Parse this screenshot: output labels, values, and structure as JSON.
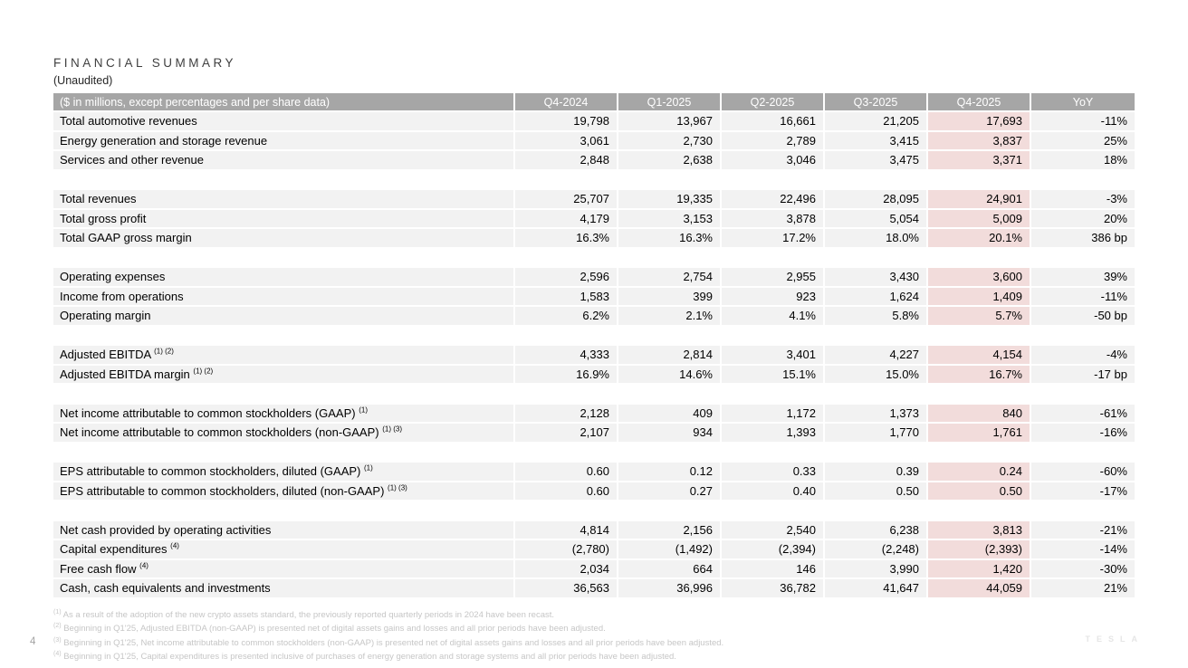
{
  "page": {
    "title": "FINANCIAL SUMMARY",
    "subtitle": "(Unaudited)",
    "page_number": "4",
    "logo": "TESLA"
  },
  "colors": {
    "header_bg": "#a6a6a6",
    "header_text": "#ffffff",
    "row_bg": "#f2f2f2",
    "highlight_bg": "#f2dcdb",
    "footnote_text": "#c6c6c6"
  },
  "table": {
    "header": [
      "($ in millions, except percentages and per share data)",
      "Q4-2024",
      "Q1-2025",
      "Q2-2025",
      "Q3-2025",
      "Q4-2025",
      "YoY"
    ],
    "highlight_column": "Q4-2025",
    "rows": [
      {
        "label": "Total automotive revenues",
        "sup": "",
        "values": [
          "19,798",
          "13,967",
          "16,661",
          "21,205",
          "17,693",
          "-11%"
        ]
      },
      {
        "label": "Energy generation and storage revenue",
        "sup": "",
        "values": [
          "3,061",
          "2,730",
          "2,789",
          "3,415",
          "3,837",
          "25%"
        ]
      },
      {
        "label": "Services and other revenue",
        "sup": "",
        "values": [
          "2,848",
          "2,638",
          "3,046",
          "3,475",
          "3,371",
          "18%"
        ]
      },
      {
        "spacer": true
      },
      {
        "label": "Total revenues",
        "sup": "",
        "values": [
          "25,707",
          "19,335",
          "22,496",
          "28,095",
          "24,901",
          "-3%"
        ]
      },
      {
        "label": "Total gross profit",
        "sup": "",
        "values": [
          "4,179",
          "3,153",
          "3,878",
          "5,054",
          "5,009",
          "20%"
        ]
      },
      {
        "label": "Total GAAP gross margin",
        "sup": "",
        "values": [
          "16.3%",
          "16.3%",
          "17.2%",
          "18.0%",
          "20.1%",
          "386 bp"
        ]
      },
      {
        "spacer": true
      },
      {
        "label": "Operating expenses",
        "sup": "",
        "values": [
          "2,596",
          "2,754",
          "2,955",
          "3,430",
          "3,600",
          "39%"
        ]
      },
      {
        "label": "Income from operations",
        "sup": "",
        "values": [
          "1,583",
          "399",
          "923",
          "1,624",
          "1,409",
          "-11%"
        ]
      },
      {
        "label": "Operating margin",
        "sup": "",
        "values": [
          "6.2%",
          "2.1%",
          "4.1%",
          "5.8%",
          "5.7%",
          "-50 bp"
        ]
      },
      {
        "spacer": true
      },
      {
        "label": "Adjusted EBITDA",
        "sup": "(1) (2)",
        "values": [
          "4,333",
          "2,814",
          "3,401",
          "4,227",
          "4,154",
          "-4%"
        ]
      },
      {
        "label": "Adjusted EBITDA margin",
        "sup": "(1) (2)",
        "values": [
          "16.9%",
          "14.6%",
          "15.1%",
          "15.0%",
          "16.7%",
          "-17 bp"
        ]
      },
      {
        "spacer": true
      },
      {
        "label": "Net income attributable to common stockholders (GAAP)",
        "sup": "(1)",
        "values": [
          "2,128",
          "409",
          "1,172",
          "1,373",
          "840",
          "-61%"
        ]
      },
      {
        "label": "Net income attributable to common stockholders (non-GAAP)",
        "sup": "(1) (3)",
        "values": [
          "2,107",
          "934",
          "1,393",
          "1,770",
          "1,761",
          "-16%"
        ]
      },
      {
        "spacer": true
      },
      {
        "label": "EPS attributable to common stockholders, diluted (GAAP)",
        "sup": "(1)",
        "values": [
          "0.60",
          "0.12",
          "0.33",
          "0.39",
          "0.24",
          "-60%"
        ]
      },
      {
        "label": "EPS attributable to common stockholders, diluted (non-GAAP)",
        "sup": "(1) (3)",
        "values": [
          "0.60",
          "0.27",
          "0.40",
          "0.50",
          "0.50",
          "-17%"
        ]
      },
      {
        "spacer": true
      },
      {
        "label": "Net cash provided by operating activities",
        "sup": "",
        "values": [
          "4,814",
          "2,156",
          "2,540",
          "6,238",
          "3,813",
          "-21%"
        ]
      },
      {
        "label": "Capital expenditures",
        "sup": "(4)",
        "values": [
          "(2,780)",
          "(1,492)",
          "(2,394)",
          "(2,248)",
          "(2,393)",
          "-14%"
        ]
      },
      {
        "label": "Free cash flow",
        "sup": "(4)",
        "values": [
          "2,034",
          "664",
          "146",
          "3,990",
          "1,420",
          "-30%"
        ]
      },
      {
        "label": "Cash, cash equivalents and investments",
        "sup": "",
        "values": [
          "36,563",
          "36,996",
          "36,782",
          "41,647",
          "44,059",
          "21%"
        ]
      }
    ]
  },
  "footnotes": [
    {
      "marker": "(1)",
      "text": "As a result of the adoption of the new crypto assets standard, the previously reported quarterly periods in 2024 have been recast."
    },
    {
      "marker": "(2)",
      "text": "Beginning in Q1'25, Adjusted EBITDA (non-GAAP) is presented net of digital assets gains and losses and all prior periods have been adjusted."
    },
    {
      "marker": "(3)",
      "text": "Beginning in Q1'25, Net income attributable to common stockholders (non-GAAP) is presented net of digital assets gains and losses and all prior periods have been adjusted."
    },
    {
      "marker": "(4)",
      "text": "Beginning in Q1'25, Capital expenditures is presented inclusive of purchases of energy generation and storage systems and all prior periods have been adjusted."
    }
  ]
}
